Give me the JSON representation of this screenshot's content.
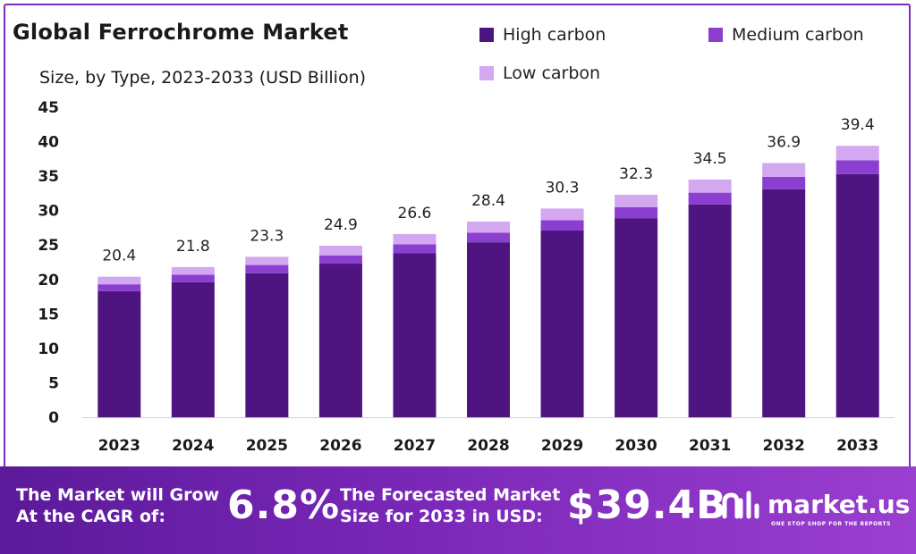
{
  "header": {
    "title": "Global Ferrochrome Market",
    "subtitle": "Size, by Type, 2023-2033 (USD Billion)"
  },
  "legend": [
    {
      "label": "High carbon",
      "color": "#4e1480"
    },
    {
      "label": "Medium carbon",
      "color": "#8b3fd0"
    },
    {
      "label": "Low carbon",
      "color": "#d3a8f0"
    }
  ],
  "chart_data": {
    "type": "bar",
    "stacked": true,
    "categories": [
      "2023",
      "2024",
      "2025",
      "2026",
      "2027",
      "2028",
      "2029",
      "2030",
      "2031",
      "2032",
      "2033"
    ],
    "series": [
      {
        "name": "High carbon",
        "color": "#4e1480",
        "values": [
          18.3,
          19.6,
          20.9,
          22.3,
          23.8,
          25.4,
          27.1,
          28.9,
          30.9,
          33.1,
          35.3
        ]
      },
      {
        "name": "Medium carbon",
        "color": "#8b3fd0",
        "values": [
          1.0,
          1.1,
          1.2,
          1.2,
          1.3,
          1.4,
          1.5,
          1.6,
          1.7,
          1.8,
          2.0
        ]
      },
      {
        "name": "Low carbon",
        "color": "#d3a8f0",
        "values": [
          1.1,
          1.1,
          1.2,
          1.4,
          1.5,
          1.6,
          1.7,
          1.8,
          1.9,
          2.0,
          2.1
        ]
      }
    ],
    "totals": [
      "20.4",
      "21.8",
      "23.3",
      "24.9",
      "26.6",
      "28.4",
      "30.3",
      "32.3",
      "34.5",
      "36.9",
      "39.4"
    ],
    "ylim": [
      0,
      45
    ],
    "yticks": [
      "0",
      "5",
      "10",
      "15",
      "20",
      "25",
      "30",
      "35",
      "40",
      "45"
    ],
    "grid": false,
    "legend_position": "top-right"
  },
  "footer": {
    "cagr_text": "The Market will Grow At the CAGR of:",
    "cagr_value": "6.8%",
    "forecast_text": "The Forecasted Market Size for 2033 in USD:",
    "forecast_value": "$39.4B",
    "brand_name": "market.us",
    "brand_tagline": "ONE STOP SHOP FOR THE REPORTS",
    "brand_icon": "market-us-logo-icon"
  }
}
